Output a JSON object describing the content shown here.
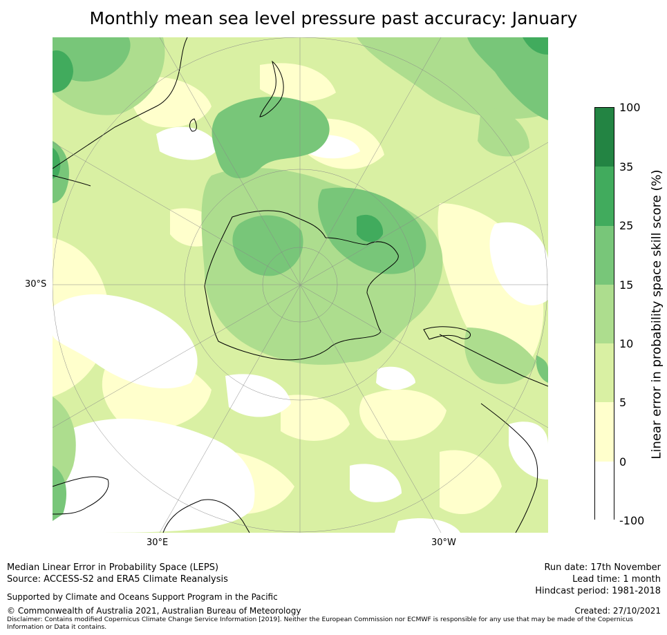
{
  "title": "Monthly mean sea level pressure past accuracy: January",
  "map": {
    "projection": "south-polar-stereographic",
    "lat_label": "30°S",
    "lon_labels": [
      "30°E",
      "30°W"
    ],
    "colors": {
      "land": "#000000",
      "grid": "#888888"
    }
  },
  "colorbar": {
    "label": "Linear error in probability space skill score (%)",
    "ticks": [
      "100",
      "35",
      "25",
      "15",
      "10",
      "5",
      "0",
      "-100"
    ],
    "bins": [
      {
        "range": "-100 to 0",
        "color": "#ffffff"
      },
      {
        "range": "0 to 5",
        "color": "#ffffcc"
      },
      {
        "range": "5 to 10",
        "color": "#d9f0a3"
      },
      {
        "range": "10 to 15",
        "color": "#addd8e"
      },
      {
        "range": "15 to 25",
        "color": "#78c679"
      },
      {
        "range": "25 to 35",
        "color": "#41ab5d"
      },
      {
        "range": "35 to 100",
        "color": "#238443"
      }
    ]
  },
  "footer": {
    "line1": "Median Linear Error in Probability Space (LEPS)",
    "line2": "Source: ACCESS-S2 and ERA5 Climate Reanalysis",
    "support": "Supported by Climate and Oceans Support Program in the Pacific",
    "copyright": "© Commonwealth of Australia 2021, Australian Bureau of Meteorology",
    "disclaimer": "Disclaimer: Contains modified Copernicus Climate Change Service Information [2019]. Neither the European Commission nor ECMWF is responsible for any use that may be made of the Copernicus Information or Data it contains.",
    "run_date": "Run date: 17th November",
    "lead_time": "Lead time: 1 month",
    "hindcast": "Hindcast period: 1981-2018",
    "created": "Created: 27/10/2021"
  }
}
